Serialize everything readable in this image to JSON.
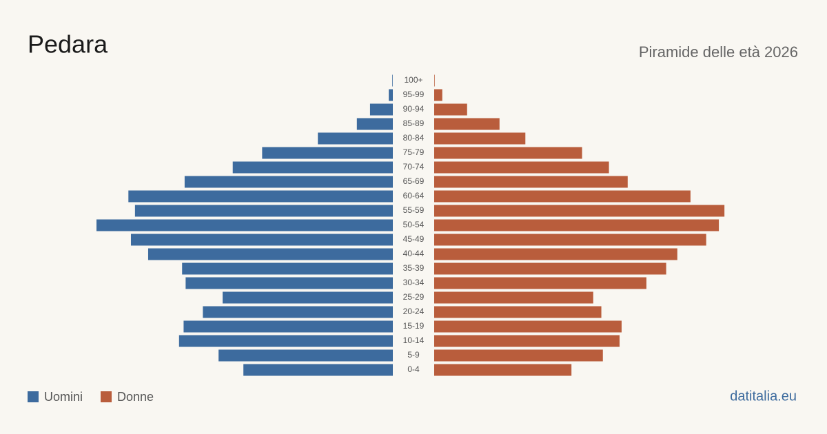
{
  "chart_data": {
    "type": "population-pyramid",
    "title": "Pedara",
    "subtitle": "Piramide delle età 2026",
    "source": "datitalia.eu",
    "categories": [
      "0-4",
      "5-9",
      "10-14",
      "15-19",
      "20-24",
      "25-29",
      "30-34",
      "35-39",
      "40-44",
      "45-49",
      "50-54",
      "55-59",
      "60-64",
      "65-69",
      "70-74",
      "75-79",
      "80-84",
      "85-89",
      "90-94",
      "95-99",
      "100+"
    ],
    "series": [
      {
        "name": "Uomini",
        "color": "#3d6b9e",
        "values": [
          295,
          344,
          422,
          413,
          375,
          336,
          409,
          416,
          483,
          517,
          585,
          509,
          522,
          411,
          316,
          258,
          148,
          71,
          45,
          8,
          1
        ]
      },
      {
        "name": "Donne",
        "color": "#b95d3c",
        "values": [
          271,
          333,
          366,
          370,
          330,
          314,
          419,
          458,
          480,
          537,
          562,
          573,
          506,
          382,
          345,
          292,
          180,
          129,
          65,
          16,
          1
        ]
      }
    ]
  }
}
